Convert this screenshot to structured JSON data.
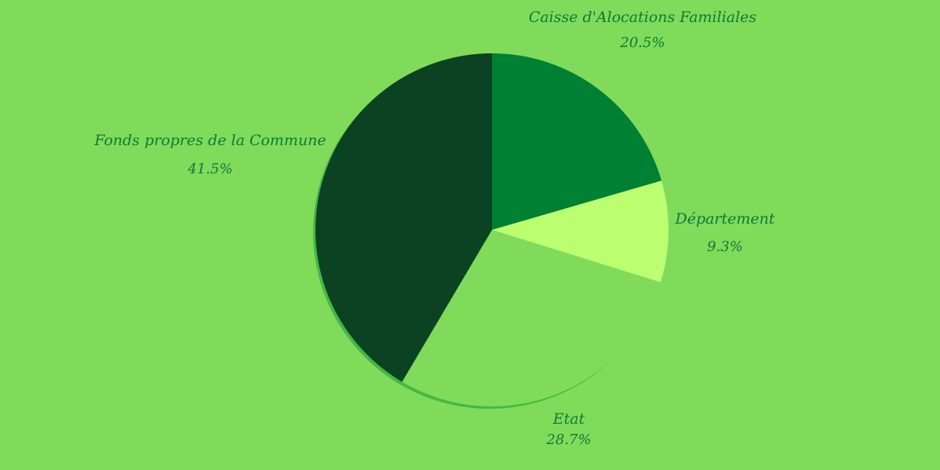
{
  "colors": {
    "background": "#80db5a",
    "label_text": "#0c7a38"
  },
  "chart_data": {
    "type": "pie",
    "title": "",
    "legend": "none",
    "slices": [
      {
        "label": "Caisse d'Alocations Familiales",
        "value": 20.5,
        "value_label": "20.5%",
        "color": "#008033"
      },
      {
        "label": "Département",
        "value": 9.3,
        "value_label": "9.3%",
        "color": "#bbfe6f"
      },
      {
        "label": "Etat",
        "value": 28.7,
        "value_label": "28.7%",
        "color": "#80db5a"
      },
      {
        "label": "Fonds propres de la Commune",
        "value": 41.5,
        "value_label": "41.5%",
        "color": "#0b4322"
      }
    ]
  }
}
